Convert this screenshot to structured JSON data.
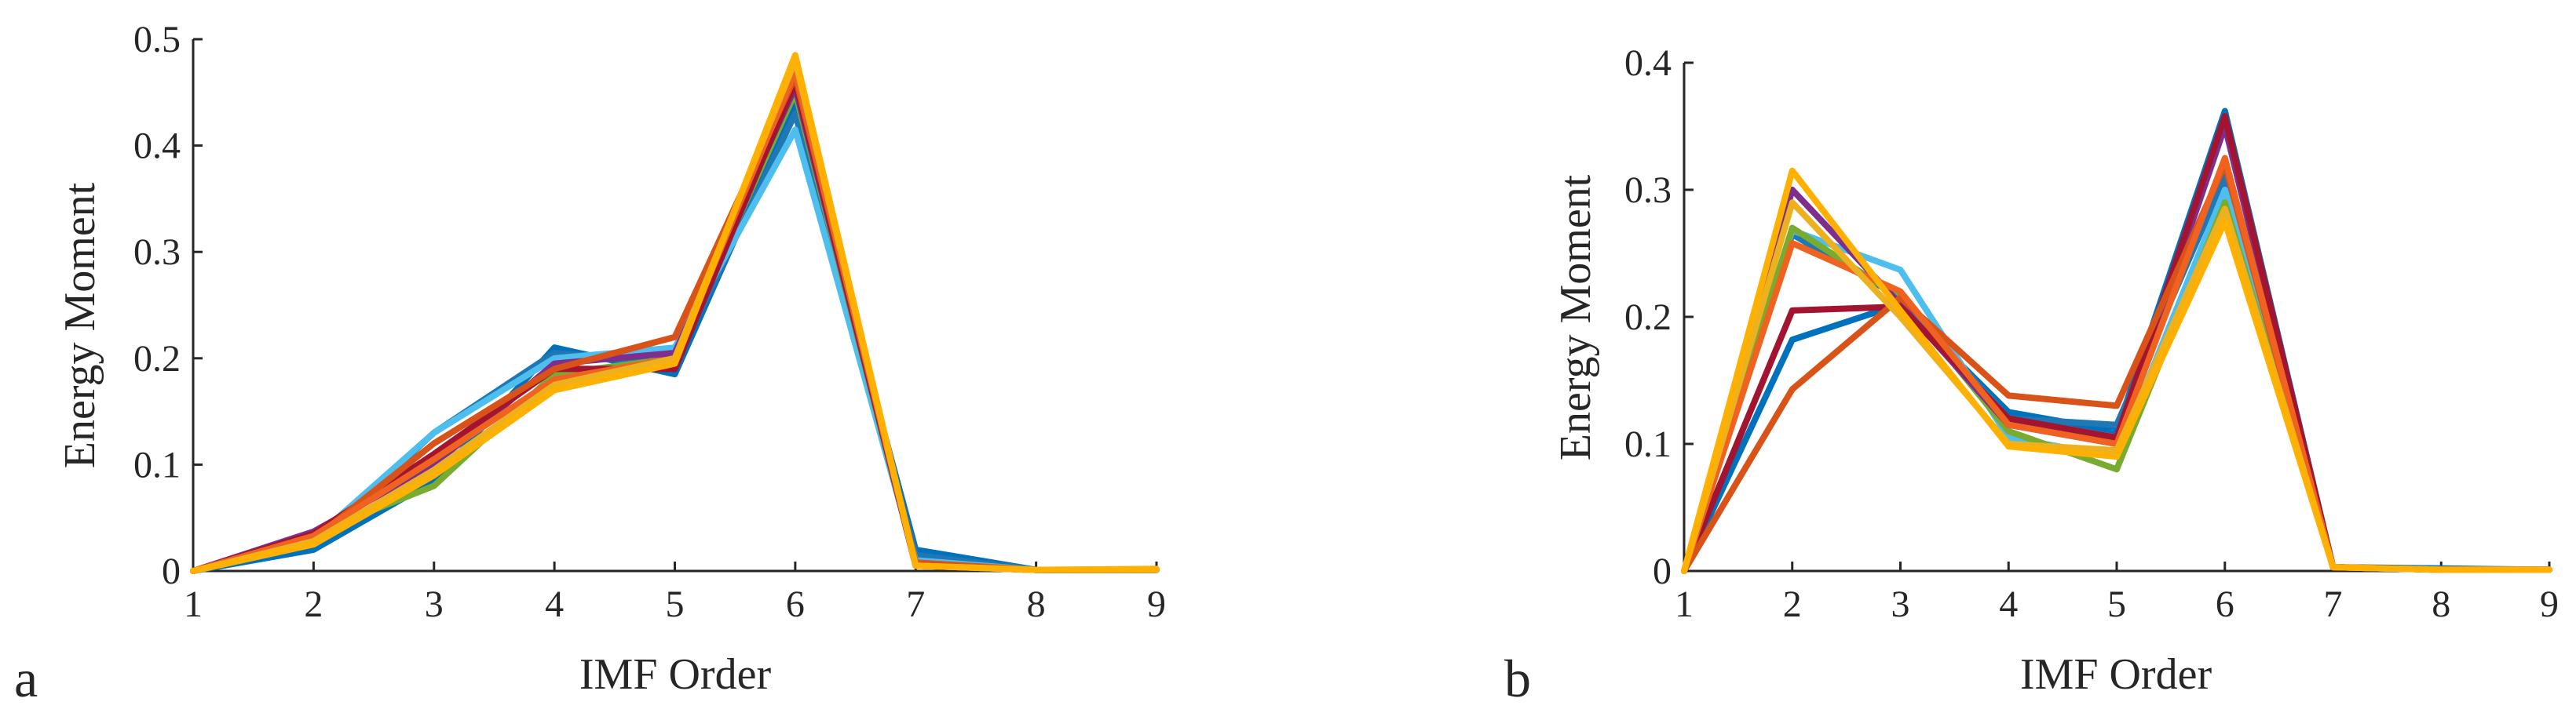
{
  "figure": {
    "colors": [
      "#0072BD",
      "#1F77B4",
      "#4DBEEE",
      "#77AC30",
      "#7E2F8E",
      "#A2142F",
      "#D95319",
      "#F0621F",
      "#EDB120",
      "#FFB000"
    ]
  },
  "chart_data": [
    {
      "type": "line",
      "panel_label": "a",
      "xlabel": "IMF Order",
      "ylabel": "Energy Moment",
      "x": [
        1,
        2,
        3,
        4,
        5,
        6,
        7,
        8,
        9
      ],
      "xlim": [
        1,
        9
      ],
      "ylim": [
        0,
        0.5
      ],
      "xticks": [
        "1",
        "2",
        "3",
        "4",
        "5",
        "6",
        "7",
        "8",
        "9"
      ],
      "yticks": [
        "0",
        "0.1",
        "0.2",
        "0.3",
        "0.4",
        "0.5"
      ],
      "grid": false,
      "series": [
        {
          "values": [
            0,
            0.02,
            0.085,
            0.21,
            0.185,
            0.44,
            0.02,
            0.001,
            0.001
          ]
        },
        {
          "values": [
            0,
            0.025,
            0.13,
            0.205,
            0.195,
            0.43,
            0.015,
            0.001,
            0.001
          ]
        },
        {
          "values": [
            0,
            0.03,
            0.13,
            0.2,
            0.21,
            0.415,
            0.01,
            0.001,
            0.001
          ]
        },
        {
          "values": [
            0,
            0.035,
            0.08,
            0.185,
            0.2,
            0.45,
            0.005,
            0.001,
            0.001
          ]
        },
        {
          "values": [
            0,
            0.037,
            0.1,
            0.195,
            0.205,
            0.455,
            0.005,
            0.001,
            0.001
          ]
        },
        {
          "values": [
            0,
            0.035,
            0.11,
            0.19,
            0.19,
            0.46,
            0.005,
            0.001,
            0.001
          ]
        },
        {
          "values": [
            0,
            0.03,
            0.12,
            0.19,
            0.22,
            0.465,
            0.008,
            0.001,
            0.001
          ]
        },
        {
          "values": [
            0,
            0.033,
            0.105,
            0.18,
            0.2,
            0.47,
            0.005,
            0.001,
            0.001
          ]
        },
        {
          "values": [
            0,
            0.028,
            0.095,
            0.175,
            0.2,
            0.48,
            0.005,
            0.001,
            0.001
          ]
        },
        {
          "values": [
            0,
            0.025,
            0.09,
            0.17,
            0.195,
            0.485,
            0.005,
            0.001,
            0.002
          ]
        }
      ]
    },
    {
      "type": "line",
      "panel_label": "b",
      "xlabel": "IMF Order",
      "ylabel": "Energy Moment",
      "x": [
        1,
        2,
        3,
        4,
        5,
        6,
        7,
        8,
        9
      ],
      "xlim": [
        1,
        9
      ],
      "ylim": [
        0,
        0.4
      ],
      "xticks": [
        "1",
        "2",
        "3",
        "4",
        "5",
        "6",
        "7",
        "8",
        "9"
      ],
      "yticks": [
        "0",
        "0.1",
        "0.2",
        "0.3",
        "0.4"
      ],
      "grid": false,
      "series": [
        {
          "values": [
            0,
            0.182,
            0.21,
            0.125,
            0.11,
            0.362,
            0.003,
            0.002,
            0.001
          ]
        },
        {
          "values": [
            0,
            0.265,
            0.215,
            0.12,
            0.115,
            0.31,
            0.003,
            0.001,
            0.001
          ]
        },
        {
          "values": [
            0,
            0.268,
            0.237,
            0.105,
            0.09,
            0.3,
            0.003,
            0.001,
            0.001
          ]
        },
        {
          "values": [
            0,
            0.27,
            0.215,
            0.11,
            0.08,
            0.29,
            0.003,
            0.001,
            0.001
          ]
        },
        {
          "values": [
            0,
            0.3,
            0.21,
            0.115,
            0.1,
            0.35,
            0.003,
            0.001,
            0.001
          ]
        },
        {
          "values": [
            0,
            0.205,
            0.208,
            0.12,
            0.105,
            0.358,
            0.003,
            0.001,
            0.001
          ]
        },
        {
          "values": [
            0,
            0.143,
            0.215,
            0.138,
            0.13,
            0.32,
            0.003,
            0.001,
            0.001
          ]
        },
        {
          "values": [
            0,
            0.258,
            0.22,
            0.115,
            0.1,
            0.325,
            0.003,
            0.001,
            0.001
          ]
        },
        {
          "values": [
            0,
            0.29,
            0.2,
            0.1,
            0.095,
            0.285,
            0.003,
            0.001,
            0.001
          ]
        },
        {
          "values": [
            0,
            0.315,
            0.205,
            0.098,
            0.09,
            0.275,
            0.003,
            0.001,
            0.001
          ]
        }
      ]
    }
  ]
}
